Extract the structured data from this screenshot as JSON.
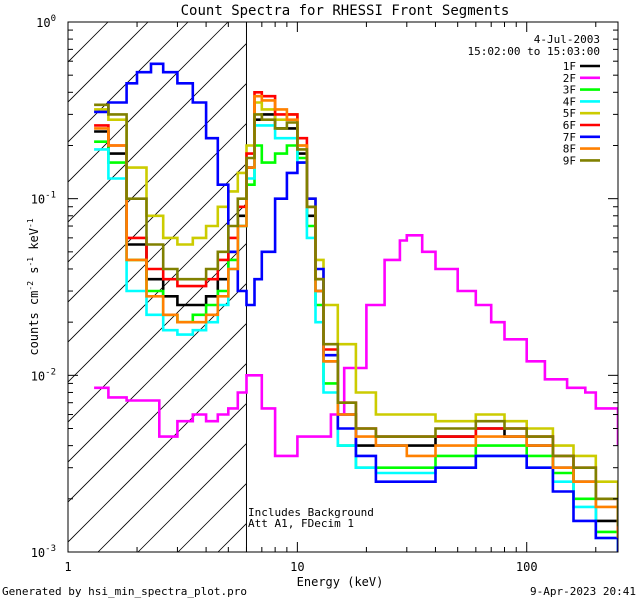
{
  "chart_data": {
    "type": "line",
    "title": "Count Spectra for RHESSI Front Segments",
    "xlabel": "Energy (keV)",
    "ylabel": "counts cm",
    "ylabel_exp": "-2",
    "ylabel_mid": " s",
    "ylabel_exp2": "-1",
    "ylabel_end": " keV",
    "ylabel_exp3": "-1",
    "xscale": "log",
    "yscale": "log",
    "xlim": [
      1,
      250
    ],
    "ylim": [
      0.001,
      1
    ],
    "x_ticks": [
      {
        "value": 1,
        "label": "1"
      },
      {
        "value": 10,
        "label": "10"
      },
      {
        "value": 100,
        "label": "100"
      }
    ],
    "y_ticks": [
      {
        "value": 1,
        "base": "10",
        "exp": "0"
      },
      {
        "value": 0.1,
        "base": "10",
        "exp": "-1"
      },
      {
        "value": 0.01,
        "base": "10",
        "exp": "-2"
      },
      {
        "value": 0.001,
        "base": "10",
        "exp": "-3"
      }
    ],
    "hatch_region": {
      "x_from": 1,
      "x_to": 6
    },
    "legend": {
      "date": "4-Jul-2003",
      "time_range": "15:02:00 to 15:03:00",
      "placement": "top-right"
    },
    "annotations": [
      "Includes Background",
      "Att A1, FDecim 1"
    ],
    "footer_left": "Generated by hsi_min_spectra_plot.pro",
    "footer_right": "9-Apr-2023 20:41",
    "series": [
      {
        "name": "1F",
        "color": "#000000",
        "x": [
          1.3,
          1.5,
          1.8,
          2.2,
          2.6,
          3.0,
          3.5,
          4.0,
          4.5,
          5.0,
          5.5,
          6.0,
          6.5,
          7.0,
          8.0,
          9.0,
          10,
          11,
          12,
          13,
          15,
          18,
          22,
          30,
          40,
          60,
          80,
          100,
          130,
          160,
          200,
          250
        ],
        "y": [
          0.24,
          0.18,
          0.055,
          0.035,
          0.028,
          0.025,
          0.025,
          0.028,
          0.035,
          0.05,
          0.08,
          0.15,
          0.28,
          0.3,
          0.25,
          0.25,
          0.18,
          0.08,
          0.03,
          0.012,
          0.006,
          0.004,
          0.004,
          0.004,
          0.0045,
          0.005,
          0.0045,
          0.004,
          0.003,
          0.0025,
          0.0015,
          0.0012
        ]
      },
      {
        "name": "2F",
        "color": "#ff00ff",
        "x": [
          1.3,
          1.5,
          1.8,
          2.0,
          2.5,
          3.0,
          3.5,
          4.0,
          4.5,
          5.0,
          5.5,
          6.0,
          7.0,
          8.0,
          10,
          12,
          14,
          16,
          20,
          24,
          28,
          30,
          35,
          40,
          50,
          60,
          70,
          80,
          100,
          120,
          150,
          180,
          200,
          250
        ],
        "y": [
          0.0085,
          0.0075,
          0.0072,
          0.0072,
          0.0045,
          0.0055,
          0.006,
          0.0055,
          0.006,
          0.0065,
          0.008,
          0.01,
          0.0065,
          0.0035,
          0.0045,
          0.0045,
          0.006,
          0.011,
          0.025,
          0.045,
          0.058,
          0.062,
          0.05,
          0.04,
          0.03,
          0.025,
          0.02,
          0.016,
          0.012,
          0.0095,
          0.0085,
          0.008,
          0.0065,
          0.004
        ]
      },
      {
        "name": "3F",
        "color": "#00ff00",
        "x": [
          1.3,
          1.5,
          1.8,
          2.2,
          2.6,
          3.0,
          3.5,
          4.0,
          4.5,
          5.0,
          5.5,
          6.0,
          6.5,
          7.0,
          8.0,
          9.0,
          10,
          11,
          12,
          13,
          15,
          18,
          22,
          30,
          40,
          60,
          80,
          100,
          130,
          160,
          200,
          250
        ],
        "y": [
          0.21,
          0.16,
          0.045,
          0.03,
          0.022,
          0.02,
          0.022,
          0.025,
          0.03,
          0.045,
          0.07,
          0.12,
          0.2,
          0.16,
          0.18,
          0.2,
          0.17,
          0.07,
          0.025,
          0.009,
          0.004,
          0.003,
          0.003,
          0.003,
          0.0035,
          0.004,
          0.004,
          0.0035,
          0.0028,
          0.002,
          0.0013,
          0.001
        ]
      },
      {
        "name": "4F",
        "color": "#00ffff",
        "x": [
          1.3,
          1.5,
          1.8,
          2.2,
          2.6,
          3.0,
          3.5,
          4.0,
          4.5,
          5.0,
          5.5,
          6.0,
          6.5,
          7.0,
          8.0,
          9.0,
          10,
          11,
          12,
          13,
          15,
          18,
          22,
          30,
          40,
          60,
          80,
          100,
          130,
          160,
          200,
          250
        ],
        "y": [
          0.19,
          0.13,
          0.03,
          0.022,
          0.018,
          0.017,
          0.018,
          0.02,
          0.025,
          0.04,
          0.07,
          0.13,
          0.26,
          0.26,
          0.22,
          0.22,
          0.16,
          0.06,
          0.02,
          0.008,
          0.004,
          0.003,
          0.0028,
          0.0028,
          0.003,
          0.0035,
          0.0035,
          0.003,
          0.0025,
          0.0018,
          0.0012,
          0.001
        ]
      },
      {
        "name": "5F",
        "color": "#cccc00",
        "x": [
          1.3,
          1.5,
          1.8,
          2.2,
          2.6,
          3.0,
          3.5,
          4.0,
          4.5,
          5.0,
          5.5,
          6.0,
          6.5,
          7.0,
          8.0,
          9.0,
          10,
          11,
          12,
          13,
          15,
          18,
          22,
          30,
          40,
          60,
          80,
          100,
          130,
          160,
          200,
          250
        ],
        "y": [
          0.32,
          0.28,
          0.15,
          0.08,
          0.06,
          0.055,
          0.06,
          0.07,
          0.09,
          0.11,
          0.14,
          0.2,
          0.35,
          0.32,
          0.28,
          0.3,
          0.2,
          0.1,
          0.045,
          0.025,
          0.015,
          0.008,
          0.006,
          0.006,
          0.0055,
          0.006,
          0.0055,
          0.005,
          0.004,
          0.0035,
          0.0025,
          0.002
        ]
      },
      {
        "name": "6F",
        "color": "#ff0000",
        "x": [
          1.3,
          1.5,
          1.8,
          2.2,
          2.6,
          3.0,
          3.5,
          4.0,
          4.5,
          5.0,
          5.5,
          6.0,
          6.5,
          7.0,
          8.0,
          9.0,
          10,
          11,
          12,
          13,
          15,
          18,
          22,
          30,
          40,
          60,
          80,
          100,
          130,
          160,
          200,
          250
        ],
        "y": [
          0.26,
          0.2,
          0.06,
          0.04,
          0.035,
          0.032,
          0.032,
          0.035,
          0.045,
          0.06,
          0.09,
          0.18,
          0.4,
          0.38,
          0.3,
          0.3,
          0.22,
          0.09,
          0.035,
          0.014,
          0.007,
          0.005,
          0.0045,
          0.0045,
          0.0045,
          0.005,
          0.005,
          0.0045,
          0.0035,
          0.003,
          0.002,
          0.0013
        ]
      },
      {
        "name": "7F",
        "color": "#0000ff",
        "x": [
          1.3,
          1.5,
          1.8,
          2.0,
          2.3,
          2.6,
          3.0,
          3.5,
          4.0,
          4.5,
          5.0,
          5.5,
          6.0,
          6.5,
          7.0,
          8.0,
          9.0,
          10,
          11,
          12,
          13,
          15,
          18,
          22,
          30,
          40,
          60,
          80,
          100,
          130,
          160,
          200,
          250
        ],
        "y": [
          0.31,
          0.35,
          0.45,
          0.52,
          0.58,
          0.52,
          0.45,
          0.35,
          0.22,
          0.12,
          0.05,
          0.03,
          0.025,
          0.035,
          0.05,
          0.1,
          0.14,
          0.16,
          0.1,
          0.04,
          0.013,
          0.005,
          0.0035,
          0.0025,
          0.0025,
          0.003,
          0.0035,
          0.0035,
          0.003,
          0.0022,
          0.0015,
          0.0012,
          0.001
        ]
      },
      {
        "name": "8F",
        "color": "#ff8000",
        "x": [
          1.3,
          1.5,
          1.8,
          2.2,
          2.6,
          3.0,
          3.5,
          4.0,
          4.5,
          5.0,
          5.5,
          6.0,
          6.5,
          7.0,
          8.0,
          9.0,
          10,
          11,
          12,
          13,
          15,
          18,
          22,
          30,
          40,
          60,
          80,
          100,
          130,
          160,
          200,
          250
        ],
        "y": [
          0.25,
          0.2,
          0.045,
          0.028,
          0.022,
          0.02,
          0.02,
          0.022,
          0.028,
          0.04,
          0.07,
          0.15,
          0.38,
          0.36,
          0.32,
          0.28,
          0.2,
          0.09,
          0.03,
          0.012,
          0.006,
          0.0045,
          0.004,
          0.0035,
          0.004,
          0.0045,
          0.0045,
          0.004,
          0.003,
          0.0025,
          0.0018,
          0.0012
        ]
      },
      {
        "name": "9F",
        "color": "#808000",
        "x": [
          1.3,
          1.5,
          1.8,
          2.2,
          2.6,
          3.0,
          3.5,
          4.0,
          4.5,
          5.0,
          5.5,
          6.0,
          6.5,
          7.0,
          8.0,
          9.0,
          10,
          11,
          12,
          13,
          15,
          18,
          22,
          30,
          40,
          60,
          80,
          100,
          130,
          160,
          200,
          250
        ],
        "y": [
          0.34,
          0.3,
          0.1,
          0.055,
          0.04,
          0.035,
          0.035,
          0.04,
          0.05,
          0.07,
          0.1,
          0.17,
          0.3,
          0.28,
          0.25,
          0.27,
          0.19,
          0.09,
          0.035,
          0.015,
          0.007,
          0.005,
          0.0045,
          0.0045,
          0.005,
          0.0055,
          0.005,
          0.0045,
          0.0035,
          0.003,
          0.002,
          0.0014
        ]
      }
    ]
  }
}
